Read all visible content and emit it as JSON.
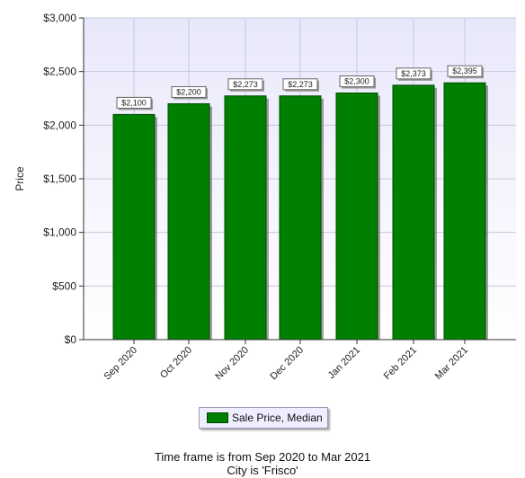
{
  "chart_data": {
    "type": "bar",
    "categories": [
      "Sep 2020",
      "Oct 2020",
      "Nov 2020",
      "Dec 2020",
      "Jan 2021",
      "Feb 2021",
      "Mar 2021"
    ],
    "series": [
      {
        "name": "Sale Price, Median",
        "values": [
          2100,
          2200,
          2273,
          2273,
          2300,
          2373,
          2395
        ],
        "data_labels": [
          "$2,100",
          "$2,200",
          "$2,273",
          "$2,273",
          "$2,300",
          "$2,373",
          "$2,395"
        ],
        "color": "#008000"
      }
    ],
    "ylabel": "Price",
    "xlabel": "",
    "ylim": [
      0,
      3000
    ],
    "yticks": [
      0,
      500,
      1000,
      1500,
      2000,
      2500,
      3000
    ],
    "ytick_labels": [
      "$0",
      "$500",
      "$1,000",
      "$1,500",
      "$2,000",
      "$2,500",
      "$3,000"
    ],
    "grid": true,
    "legend": "bottom"
  },
  "captions": {
    "timeframe": "Time frame is from Sep 2020 to Mar 2021",
    "city": "City is 'Frisco'"
  },
  "colors": {
    "plot_background": "#eeeeff",
    "bar": "#008000",
    "grid": "#c8c8dc"
  }
}
